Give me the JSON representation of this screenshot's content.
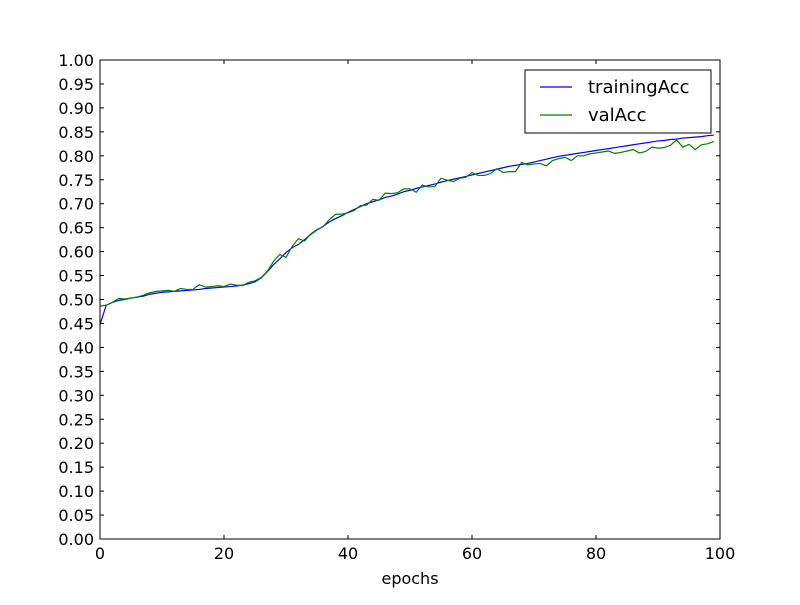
{
  "chart_data": {
    "type": "line",
    "title": "",
    "xlabel": "epochs",
    "ylabel": "",
    "xlim": [
      0,
      100
    ],
    "ylim": [
      0.0,
      1.0
    ],
    "xticks": [
      "0",
      "20",
      "40",
      "60",
      "80",
      "100"
    ],
    "yticks": [
      "0.00",
      "0.05",
      "0.10",
      "0.15",
      "0.20",
      "0.25",
      "0.30",
      "0.35",
      "0.40",
      "0.45",
      "0.50",
      "0.55",
      "0.60",
      "0.65",
      "0.70",
      "0.75",
      "0.80",
      "0.85",
      "0.90",
      "0.95",
      "1.00"
    ],
    "grid": false,
    "legend_position": "top-right",
    "series": [
      {
        "name": "trainingAcc",
        "color": "#0000ff",
        "x": [
          0,
          1,
          2,
          3,
          4,
          5,
          6,
          7,
          8,
          9,
          10,
          11,
          12,
          13,
          14,
          15,
          16,
          17,
          18,
          19,
          20,
          21,
          22,
          23,
          24,
          25,
          26,
          27,
          28,
          29,
          30,
          31,
          32,
          33,
          34,
          35,
          36,
          37,
          38,
          39,
          40,
          41,
          42,
          43,
          44,
          45,
          46,
          47,
          48,
          49,
          50,
          51,
          52,
          53,
          54,
          55,
          56,
          57,
          58,
          59,
          60,
          61,
          62,
          63,
          64,
          65,
          66,
          67,
          68,
          69,
          70,
          71,
          72,
          73,
          74,
          75,
          76,
          77,
          78,
          79,
          80,
          81,
          82,
          83,
          84,
          85,
          86,
          87,
          88,
          89,
          90,
          91,
          92,
          93,
          94,
          95,
          96,
          97,
          98,
          99
        ],
        "values": [
          0.448,
          0.488,
          0.494,
          0.498,
          0.5,
          0.503,
          0.505,
          0.507,
          0.511,
          0.513,
          0.515,
          0.516,
          0.517,
          0.518,
          0.519,
          0.52,
          0.521,
          0.523,
          0.524,
          0.525,
          0.526,
          0.527,
          0.528,
          0.53,
          0.533,
          0.537,
          0.545,
          0.558,
          0.573,
          0.585,
          0.598,
          0.608,
          0.615,
          0.625,
          0.636,
          0.645,
          0.653,
          0.662,
          0.669,
          0.675,
          0.682,
          0.688,
          0.694,
          0.7,
          0.704,
          0.708,
          0.713,
          0.716,
          0.72,
          0.725,
          0.728,
          0.732,
          0.735,
          0.738,
          0.741,
          0.745,
          0.748,
          0.751,
          0.754,
          0.757,
          0.76,
          0.763,
          0.766,
          0.769,
          0.772,
          0.775,
          0.778,
          0.78,
          0.782,
          0.784,
          0.787,
          0.79,
          0.793,
          0.796,
          0.799,
          0.801,
          0.803,
          0.805,
          0.807,
          0.809,
          0.811,
          0.813,
          0.815,
          0.817,
          0.819,
          0.821,
          0.823,
          0.825,
          0.827,
          0.829,
          0.831,
          0.832,
          0.834,
          0.835,
          0.837,
          0.838,
          0.839,
          0.84,
          0.842,
          0.843
        ]
      },
      {
        "name": "valAcc",
        "color": "#008000",
        "x": [
          0,
          1,
          2,
          3,
          4,
          5,
          6,
          7,
          8,
          9,
          10,
          11,
          12,
          13,
          14,
          15,
          16,
          17,
          18,
          19,
          20,
          21,
          22,
          23,
          24,
          25,
          26,
          27,
          28,
          29,
          30,
          31,
          32,
          33,
          34,
          35,
          36,
          37,
          38,
          39,
          40,
          41,
          42,
          43,
          44,
          45,
          46,
          47,
          48,
          49,
          50,
          51,
          52,
          53,
          54,
          55,
          56,
          57,
          58,
          59,
          60,
          61,
          62,
          63,
          64,
          65,
          66,
          67,
          68,
          69,
          70,
          71,
          72,
          73,
          74,
          75,
          76,
          77,
          78,
          79,
          80,
          81,
          82,
          83,
          84,
          85,
          86,
          87,
          88,
          89,
          90,
          91,
          92,
          93,
          94,
          95,
          96,
          97,
          98,
          99
        ],
        "values": [
          0.486,
          0.488,
          0.494,
          0.502,
          0.501,
          0.503,
          0.505,
          0.509,
          0.514,
          0.517,
          0.518,
          0.519,
          0.517,
          0.523,
          0.521,
          0.521,
          0.531,
          0.526,
          0.527,
          0.529,
          0.527,
          0.532,
          0.53,
          0.529,
          0.536,
          0.539,
          0.546,
          0.559,
          0.58,
          0.594,
          0.588,
          0.611,
          0.627,
          0.622,
          0.637,
          0.646,
          0.652,
          0.667,
          0.678,
          0.678,
          0.681,
          0.686,
          0.696,
          0.697,
          0.709,
          0.707,
          0.722,
          0.721,
          0.723,
          0.731,
          0.731,
          0.724,
          0.739,
          0.735,
          0.736,
          0.753,
          0.749,
          0.746,
          0.753,
          0.755,
          0.765,
          0.759,
          0.759,
          0.763,
          0.773,
          0.765,
          0.767,
          0.767,
          0.786,
          0.781,
          0.783,
          0.784,
          0.779,
          0.79,
          0.794,
          0.797,
          0.79,
          0.8,
          0.8,
          0.804,
          0.806,
          0.808,
          0.81,
          0.805,
          0.807,
          0.81,
          0.813,
          0.806,
          0.809,
          0.818,
          0.816,
          0.817,
          0.822,
          0.833,
          0.818,
          0.824,
          0.813,
          0.823,
          0.825,
          0.83
        ]
      }
    ]
  }
}
